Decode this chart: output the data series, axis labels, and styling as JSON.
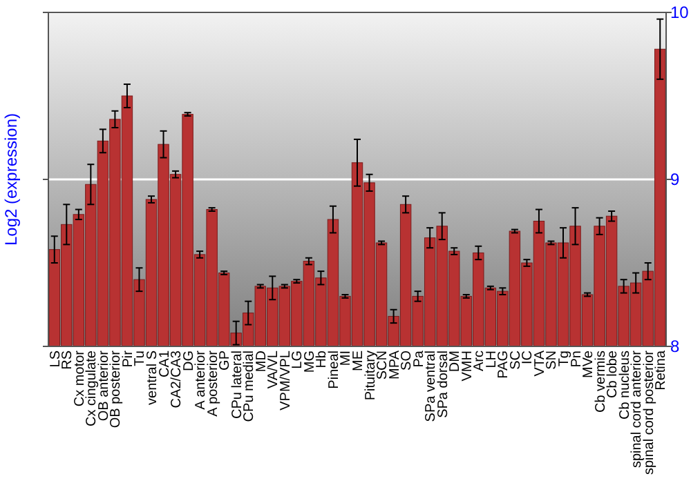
{
  "chart_data": {
    "type": "bar",
    "ylabel": "Log2 (expression)",
    "categories": [
      "LS",
      "RS",
      "Cx motor",
      "Cx cingulate",
      "OB anterior",
      "OB posterior",
      "Pir",
      "Tu",
      "ventral S",
      "CA1",
      "CA2/CA3",
      "DG",
      "A anterior",
      "A posterior",
      "GP",
      "CPu lateral",
      "CPu medial",
      "MD",
      "VA/VL",
      "VPM/VPL",
      "LG",
      "MG",
      "Hb",
      "Pineal",
      "MI",
      "ME",
      "Pituitary",
      "SCN",
      "MPA",
      "SO",
      "Pa",
      "SPa ventral",
      "SPa dorsal",
      "DM",
      "VMH",
      "Arc",
      "LH",
      "PAG",
      "SC",
      "IC",
      "VTA",
      "SN",
      "Tg",
      "Pn",
      "MVe",
      "Cb vermis",
      "Cb lobe",
      "Cb nucleus",
      "spinal cord anterior",
      "spinal cord posterior",
      "Retina"
    ],
    "values": [
      8.58,
      8.73,
      8.79,
      8.97,
      9.23,
      9.36,
      9.5,
      8.4,
      8.88,
      9.21,
      9.03,
      9.39,
      8.55,
      8.82,
      8.44,
      8.08,
      8.2,
      8.36,
      8.35,
      8.36,
      8.39,
      8.51,
      8.41,
      8.76,
      8.3,
      9.1,
      8.98,
      8.62,
      8.18,
      8.85,
      8.3,
      8.65,
      8.72,
      8.57,
      8.3,
      8.56,
      8.35,
      8.33,
      8.69,
      8.5,
      8.75,
      8.62,
      8.62,
      8.72,
      8.31,
      8.72,
      8.78,
      8.36,
      8.38,
      8.45,
      9.78
    ],
    "errors": [
      0.08,
      0.12,
      0.03,
      0.12,
      0.07,
      0.05,
      0.07,
      0.07,
      0.02,
      0.08,
      0.02,
      0.01,
      0.02,
      0.01,
      0.01,
      0.07,
      0.07,
      0.01,
      0.07,
      0.01,
      0.01,
      0.02,
      0.04,
      0.08,
      0.01,
      0.14,
      0.05,
      0.01,
      0.04,
      0.05,
      0.03,
      0.06,
      0.08,
      0.02,
      0.01,
      0.04,
      0.01,
      0.02,
      0.01,
      0.02,
      0.07,
      0.01,
      0.09,
      0.11,
      0.01,
      0.05,
      0.03,
      0.04,
      0.06,
      0.05,
      0.18
    ],
    "color": "#b83232",
    "ylim": [
      8,
      10
    ],
    "yticks": [
      8,
      9,
      10
    ],
    "grid": "y"
  }
}
